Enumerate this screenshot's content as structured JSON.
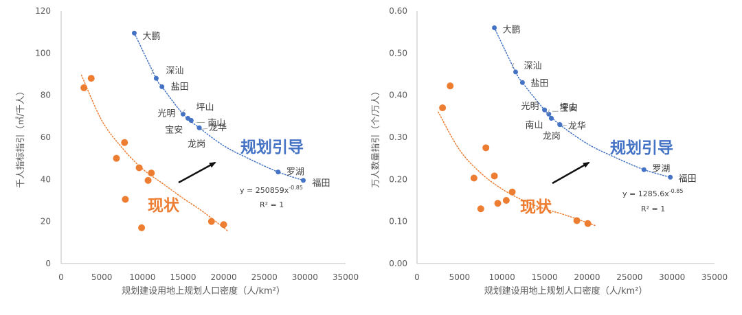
{
  "chart_data": [
    {
      "type": "scatter",
      "xlabel": "规划建设用地上规划人口密度（人/km²）",
      "ylabel": "千人指标指引（㎡/千人）",
      "xlim": [
        0,
        35000
      ],
      "ylim": [
        0,
        120
      ],
      "xticks": [
        "0",
        "5000",
        "10000",
        "15000",
        "20000",
        "25000",
        "30000",
        "35000"
      ],
      "yticks": [
        "0",
        "20",
        "40",
        "60",
        "80",
        "100",
        "120"
      ],
      "grid": "none",
      "series": [
        {
          "name": "现状",
          "color": "#ED7D31",
          "x": [
            2800,
            3700,
            6800,
            7800,
            7900,
            9600,
            10700,
            11100,
            9900,
            18500,
            20000
          ],
          "y": [
            83.5,
            88,
            50,
            57.5,
            30.5,
            45.5,
            39.5,
            43,
            17,
            20,
            18.5
          ]
        },
        {
          "name": "规划引导",
          "color": "#4472C4",
          "points": [
            {
              "label": "大鹏",
              "x": 9000,
              "y": 109.5
            },
            {
              "label": "深汕",
              "x": 11700,
              "y": 88
            },
            {
              "label": "盐田",
              "x": 12400,
              "y": 84
            },
            {
              "label": "光明",
              "x": 15000,
              "y": 71
            },
            {
              "label": "坪山",
              "x": 15600,
              "y": 69
            },
            {
              "label": "宝安",
              "x": 16000,
              "y": 68
            },
            {
              "label": "南山",
              "x": 16000,
              "y": 68
            },
            {
              "label": "龙华",
              "x": 17000,
              "y": 64.5
            },
            {
              "label": "龙岗",
              "x": 17000,
              "y": 64.5
            },
            {
              "label": "罗湖",
              "x": 26700,
              "y": 43.5
            },
            {
              "label": "福田",
              "x": 29800,
              "y": 39.5
            }
          ]
        }
      ],
      "trendlines": [
        {
          "series": "现状",
          "x_range": [
            2500,
            20500
          ],
          "curve": [
            [
              2500,
              89.5
            ],
            [
              5000,
              68
            ],
            [
              7500,
              55
            ],
            [
              10000,
              45
            ],
            [
              12500,
              38
            ],
            [
              15000,
              31
            ],
            [
              17500,
              24.5
            ],
            [
              20500,
              15.5
            ]
          ]
        },
        {
          "series": "规划引导",
          "x_range": [
            9000,
            29800
          ],
          "curve": [
            [
              9000,
              109.5
            ],
            [
              11700,
              88
            ],
            [
              12400,
              84
            ],
            [
              15000,
              71
            ],
            [
              17000,
              64.5
            ],
            [
              20000,
              56
            ],
            [
              23000,
              50
            ],
            [
              26700,
              43.5
            ],
            [
              29800,
              39.5
            ]
          ]
        }
      ],
      "equation": "y = 250859x",
      "equation_exponent": "-0.85",
      "r_squared": "R² = 1",
      "annotation_current": "现状",
      "annotation_planned": "规划引导"
    },
    {
      "type": "scatter",
      "xlabel": "规划建设用地上规划人口密度（人/km²）",
      "ylabel": "万人数量指引（个/万人）",
      "xlim": [
        0,
        35000
      ],
      "ylim": [
        0,
        0.6
      ],
      "xticks": [
        "0",
        "5000",
        "10000",
        "15000",
        "20000",
        "25000",
        "30000",
        "35000"
      ],
      "yticks": [
        "0.00",
        "0.10",
        "0.20",
        "0.30",
        "0.40",
        "0.50",
        "0.60"
      ],
      "grid": "none",
      "series": [
        {
          "name": "现状",
          "color": "#ED7D31",
          "x": [
            3000,
            3900,
            6700,
            7500,
            8100,
            9100,
            9500,
            10500,
            11200,
            18800,
            20100
          ],
          "y": [
            0.37,
            0.422,
            0.203,
            0.13,
            0.275,
            0.208,
            0.143,
            0.15,
            0.17,
            0.102,
            0.095
          ]
        },
        {
          "name": "规划引导",
          "color": "#4472C4",
          "points": [
            {
              "label": "大鹏",
              "x": 9100,
              "y": 0.56
            },
            {
              "label": "深汕",
              "x": 11600,
              "y": 0.455
            },
            {
              "label": "盐田",
              "x": 12400,
              "y": 0.43
            },
            {
              "label": "光明",
              "x": 15000,
              "y": 0.365
            },
            {
              "label": "宝安",
              "x": 15500,
              "y": 0.355
            },
            {
              "label": "坪山",
              "x": 15800,
              "y": 0.345
            },
            {
              "label": "南山",
              "x": 15800,
              "y": 0.345
            },
            {
              "label": "龙华",
              "x": 16800,
              "y": 0.33
            },
            {
              "label": "龙岗",
              "x": 16800,
              "y": 0.33
            },
            {
              "label": "罗湖",
              "x": 26700,
              "y": 0.223
            },
            {
              "label": "福田",
              "x": 29800,
              "y": 0.205
            }
          ]
        }
      ],
      "trendlines": [
        {
          "series": "现状",
          "x_range": [
            2500,
            21000
          ],
          "curve": [
            [
              2500,
              0.36
            ],
            [
              5000,
              0.27
            ],
            [
              7500,
              0.215
            ],
            [
              10000,
              0.177
            ],
            [
              12500,
              0.15
            ],
            [
              15000,
              0.13
            ],
            [
              17500,
              0.115
            ],
            [
              21000,
              0.09
            ]
          ]
        },
        {
          "series": "规划引导",
          "x_range": [
            9100,
            29800
          ],
          "curve": [
            [
              9100,
              0.56
            ],
            [
              11600,
              0.455
            ],
            [
              12400,
              0.43
            ],
            [
              15000,
              0.365
            ],
            [
              16800,
              0.33
            ],
            [
              20000,
              0.285
            ],
            [
              23000,
              0.255
            ],
            [
              26700,
              0.223
            ],
            [
              29800,
              0.205
            ]
          ]
        }
      ],
      "equation": "y = 1285.6x",
      "equation_exponent": "-0.85",
      "r_squared": "R² = 1",
      "annotation_current": "现状",
      "annotation_planned": "规划引导"
    }
  ]
}
